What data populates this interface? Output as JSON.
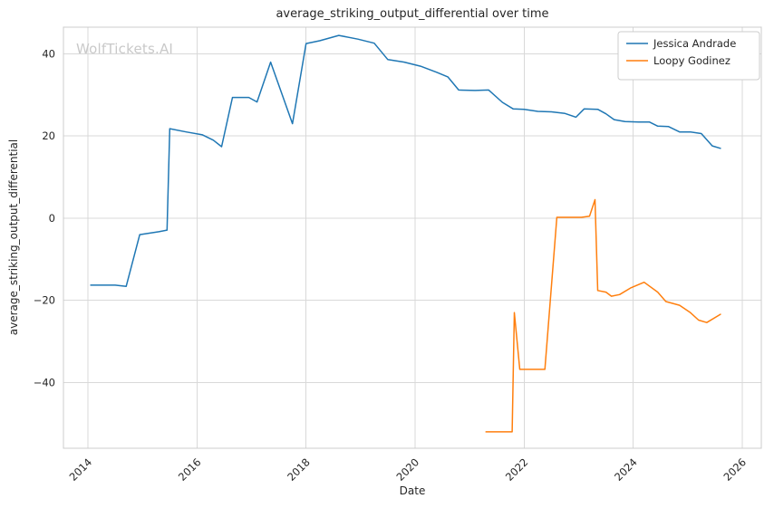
{
  "watermark": "WolfTickets.AI",
  "chart_data": {
    "type": "line",
    "title": "average_striking_output_differential over time",
    "xlabel": "Date",
    "ylabel": "average_striking_output_differential",
    "xlim": [
      2013.55,
      2026.35
    ],
    "ylim": [
      -56,
      46.5
    ],
    "x_ticks": [
      2014,
      2016,
      2018,
      2020,
      2022,
      2024,
      2026
    ],
    "x_tick_labels": [
      "2014",
      "2016",
      "2018",
      "2020",
      "2022",
      "2024",
      "2026"
    ],
    "y_ticks": [
      -40,
      -20,
      0,
      20,
      40
    ],
    "y_tick_labels": [
      "−40",
      "−20",
      "0",
      "20",
      "40"
    ],
    "grid": true,
    "legend_position": "upper right",
    "colors": {
      "grid": "#d9d9d9",
      "spine": "#cccccc",
      "text": "#262626",
      "legend_border": "#cccccc",
      "legend_bg": "#ffffff"
    },
    "series": [
      {
        "name": "Jessica Andrade",
        "color": "#1f77b4",
        "points": [
          [
            2014.05,
            -16.3
          ],
          [
            2014.5,
            -16.3
          ],
          [
            2014.7,
            -16.6
          ],
          [
            2014.95,
            -4.0
          ],
          [
            2015.3,
            -3.3
          ],
          [
            2015.45,
            -2.9
          ],
          [
            2015.5,
            21.8
          ],
          [
            2015.8,
            21.0
          ],
          [
            2016.1,
            20.3
          ],
          [
            2016.3,
            19.0
          ],
          [
            2016.45,
            17.4
          ],
          [
            2016.65,
            29.4
          ],
          [
            2016.95,
            29.4
          ],
          [
            2017.1,
            28.3
          ],
          [
            2017.35,
            38.0
          ],
          [
            2017.75,
            23.0
          ],
          [
            2018.0,
            42.5
          ],
          [
            2018.25,
            43.2
          ],
          [
            2018.6,
            44.5
          ],
          [
            2018.95,
            43.6
          ],
          [
            2019.25,
            42.6
          ],
          [
            2019.5,
            38.6
          ],
          [
            2019.8,
            38.0
          ],
          [
            2020.1,
            37.0
          ],
          [
            2020.4,
            35.5
          ],
          [
            2020.6,
            34.4
          ],
          [
            2020.8,
            31.2
          ],
          [
            2021.1,
            31.1
          ],
          [
            2021.35,
            31.2
          ],
          [
            2021.6,
            28.2
          ],
          [
            2021.8,
            26.6
          ],
          [
            2022.0,
            26.5
          ],
          [
            2022.25,
            26.0
          ],
          [
            2022.5,
            25.9
          ],
          [
            2022.75,
            25.5
          ],
          [
            2022.95,
            24.6
          ],
          [
            2023.1,
            26.6
          ],
          [
            2023.35,
            26.5
          ],
          [
            2023.5,
            25.4
          ],
          [
            2023.65,
            24.0
          ],
          [
            2023.85,
            23.5
          ],
          [
            2024.1,
            23.4
          ],
          [
            2024.3,
            23.4
          ],
          [
            2024.45,
            22.4
          ],
          [
            2024.65,
            22.3
          ],
          [
            2024.85,
            21.0
          ],
          [
            2025.05,
            21.0
          ],
          [
            2025.25,
            20.6
          ],
          [
            2025.45,
            17.6
          ],
          [
            2025.6,
            17.0
          ]
        ]
      },
      {
        "name": "Loopy Godinez",
        "color": "#ff7f0e",
        "points": [
          [
            2021.3,
            -52.0
          ],
          [
            2021.6,
            -52.0
          ],
          [
            2021.78,
            -52.0
          ],
          [
            2021.82,
            -23.0
          ],
          [
            2021.92,
            -36.8
          ],
          [
            2022.15,
            -36.8
          ],
          [
            2022.38,
            -36.8
          ],
          [
            2022.6,
            0.2
          ],
          [
            2022.85,
            0.2
          ],
          [
            2023.05,
            0.2
          ],
          [
            2023.2,
            0.5
          ],
          [
            2023.3,
            4.5
          ],
          [
            2023.35,
            -17.6
          ],
          [
            2023.5,
            -18.0
          ],
          [
            2023.6,
            -19.0
          ],
          [
            2023.75,
            -18.6
          ],
          [
            2023.95,
            -17.0
          ],
          [
            2024.2,
            -15.6
          ],
          [
            2024.45,
            -18.0
          ],
          [
            2024.6,
            -20.3
          ],
          [
            2024.85,
            -21.2
          ],
          [
            2025.05,
            -23.0
          ],
          [
            2025.2,
            -24.8
          ],
          [
            2025.35,
            -25.4
          ],
          [
            2025.6,
            -23.4
          ]
        ]
      }
    ]
  }
}
